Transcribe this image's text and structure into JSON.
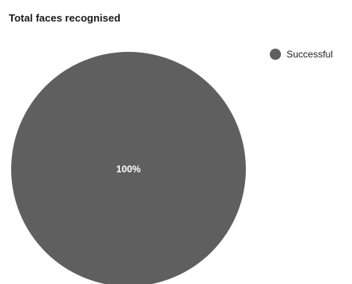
{
  "chart_data": {
    "type": "pie",
    "title": "Total faces recognised",
    "slices": [
      {
        "label": "Successful",
        "value": 100,
        "percent_label": "100%",
        "color": "#5f5f5f"
      }
    ],
    "legend_placement": "top-right"
  }
}
